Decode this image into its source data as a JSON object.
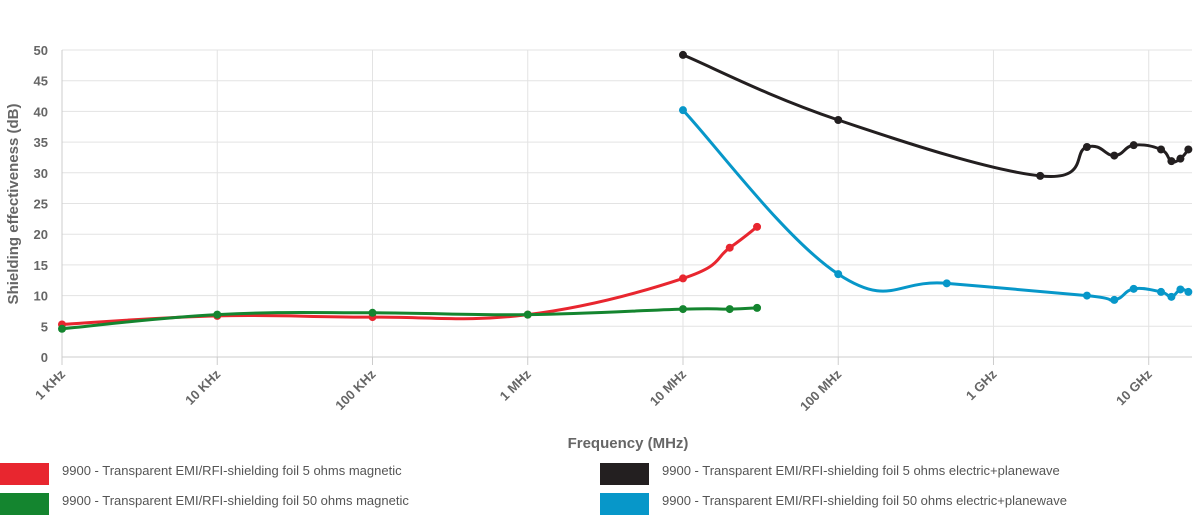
{
  "chart_data": {
    "type": "line",
    "x_label": "Frequency (MHz)",
    "y_label": "Shielding effectiveness (dB)",
    "log_x": true,
    "grid": true,
    "legend_position": "bottom",
    "xlim": [
      0.001,
      19000
    ],
    "ylim": [
      0,
      50
    ],
    "xticks": [
      {
        "value": 0.001,
        "label": "1 KHz"
      },
      {
        "value": 0.01,
        "label": "10 KHz"
      },
      {
        "value": 0.1,
        "label": "100 KHz"
      },
      {
        "value": 1,
        "label": "1 MHz"
      },
      {
        "value": 10,
        "label": "10 MHz"
      },
      {
        "value": 100,
        "label": "100 MHz"
      },
      {
        "value": 1000,
        "label": "1 GHz"
      },
      {
        "value": 10000,
        "label": "10 GHz"
      }
    ],
    "yticks": [
      0,
      5,
      10,
      15,
      20,
      25,
      30,
      35,
      40,
      45,
      50
    ],
    "series": [
      {
        "name": "9900 - Transparent EMI/RFI-shielding foil 5 ohms magnetic",
        "color": "#e8262f",
        "x": [
          0.001,
          0.01,
          0.1,
          1,
          10,
          20,
          30
        ],
        "values": [
          5.3,
          6.7,
          6.5,
          6.9,
          12.8,
          17.8,
          21.2
        ]
      },
      {
        "name": "9900 - Transparent EMI/RFI-shielding foil 50 ohms magnetic",
        "color": "#14852f",
        "x": [
          0.001,
          0.01,
          0.1,
          1,
          10,
          20,
          30
        ],
        "values": [
          4.6,
          6.9,
          7.2,
          6.9,
          7.8,
          7.8,
          8.0
        ]
      },
      {
        "name": "9900 - Transparent EMI/RFI-shielding foil 5 ohms electric+planewave",
        "color": "#231f20",
        "x": [
          10,
          100,
          2000,
          4000,
          6000,
          8000,
          12000,
          14000,
          16000,
          18000
        ],
        "values": [
          49.2,
          38.6,
          29.5,
          34.2,
          32.8,
          34.5,
          33.8,
          31.9,
          32.3,
          33.8
        ]
      },
      {
        "name": "9900 - Transparent EMI/RFI-shielding foil 50 ohms electric+planewave",
        "color": "#0797c9",
        "x": [
          10,
          100,
          500,
          4000,
          6000,
          8000,
          12000,
          14000,
          16000,
          18000
        ],
        "values": [
          40.2,
          13.5,
          12.0,
          10.0,
          9.3,
          11.1,
          10.6,
          9.8,
          11.0,
          10.6
        ]
      }
    ]
  }
}
